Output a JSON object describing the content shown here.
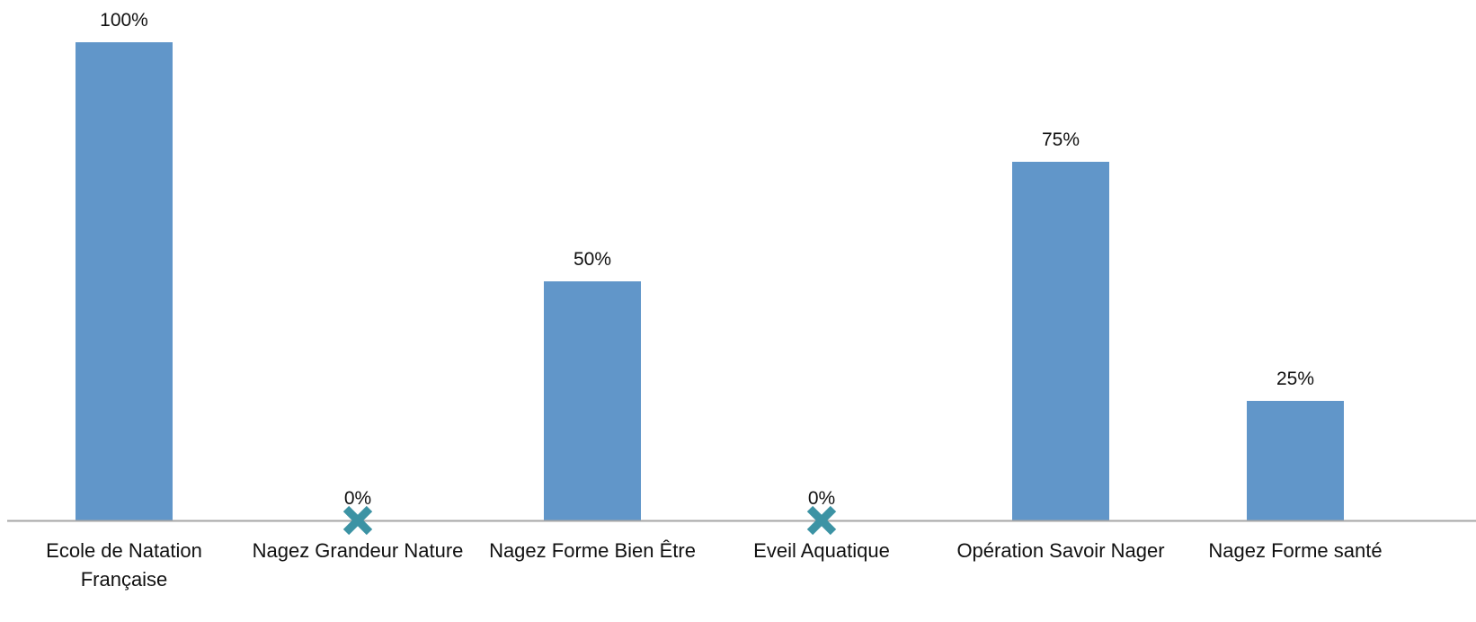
{
  "chart_data": {
    "type": "bar",
    "title": "",
    "xlabel": "",
    "ylabel": "",
    "categories": [
      [
        "Ecole de Natation",
        "Française"
      ],
      [
        "Nagez Grandeur Nature"
      ],
      [
        "Nagez Forme Bien Être"
      ],
      [
        "Eveil Aquatique"
      ],
      [
        "Opération Savoir Nager"
      ],
      [
        "Nagez Forme santé"
      ]
    ],
    "values": [
      100,
      0,
      50,
      0,
      75,
      25
    ],
    "data_labels": [
      "100%",
      "0%",
      "50%",
      "0%",
      "75%",
      "25%"
    ],
    "ylim": [
      0,
      100
    ],
    "grid": false,
    "legend": "none",
    "zero_marker": "x",
    "colors": {
      "bar": "#6196c9",
      "axis": "#a6a6a6",
      "zero_marker": "#3c93a4",
      "text": "#111111"
    }
  }
}
